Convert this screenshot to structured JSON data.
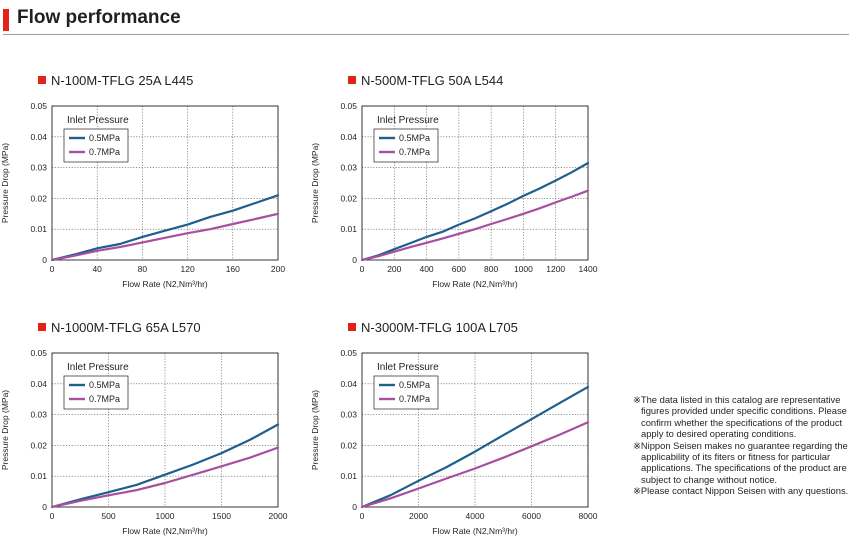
{
  "page": {
    "title": "Flow performance"
  },
  "chart_data": [
    {
      "type": "line",
      "title": "N-100M-TFLG 25A L445",
      "xlabel": "Flow Rate (N2,Nm³/hr)",
      "ylabel": "Pressure Drop (MPa)",
      "xlim": [
        0,
        200
      ],
      "ylim": [
        0,
        0.05
      ],
      "x_ticks": [
        0,
        40,
        80,
        120,
        160,
        200
      ],
      "y_ticks": [
        0,
        0.01,
        0.02,
        0.03,
        0.04,
        0.05
      ],
      "grid": true,
      "legend_title": "Inlet Pressure",
      "legend_position": "top-left",
      "series": [
        {
          "name": "0.5MPa",
          "color": "#1e5f8e",
          "x": [
            0,
            20,
            40,
            60,
            80,
            100,
            120,
            140,
            160,
            180,
            200
          ],
          "y": [
            0,
            0.0018,
            0.0038,
            0.0052,
            0.0075,
            0.0095,
            0.0115,
            0.014,
            0.016,
            0.0185,
            0.021
          ]
        },
        {
          "name": "0.7MPa",
          "color": "#a84f9e",
          "x": [
            0,
            20,
            40,
            60,
            80,
            100,
            120,
            140,
            160,
            180,
            200
          ],
          "y": [
            0,
            0.0014,
            0.003,
            0.0042,
            0.0057,
            0.0072,
            0.0087,
            0.01,
            0.0117,
            0.0133,
            0.015
          ]
        }
      ]
    },
    {
      "type": "line",
      "title": "N-500M-TFLG 50A L544",
      "xlabel": "Flow Rate (N2,Nm³/hr)",
      "ylabel": "Pressure Drop (MPa)",
      "xlim": [
        0,
        1400
      ],
      "ylim": [
        0,
        0.05
      ],
      "x_ticks": [
        0,
        200,
        400,
        600,
        800,
        1000,
        1200,
        1400
      ],
      "y_ticks": [
        0,
        0.01,
        0.02,
        0.03,
        0.04,
        0.05
      ],
      "grid": true,
      "legend_title": "Inlet Pressure",
      "legend_position": "top-left",
      "series": [
        {
          "name": "0.5MPa",
          "color": "#1e5f8e",
          "x": [
            0,
            100,
            200,
            300,
            400,
            500,
            600,
            700,
            800,
            900,
            1000,
            1100,
            1200,
            1300,
            1400
          ],
          "y": [
            0,
            0.0015,
            0.0035,
            0.0055,
            0.0075,
            0.0092,
            0.0115,
            0.0135,
            0.0158,
            0.0182,
            0.0208,
            0.0232,
            0.0258,
            0.0285,
            0.0315
          ]
        },
        {
          "name": "0.7MPa",
          "color": "#a84f9e",
          "x": [
            0,
            100,
            200,
            300,
            400,
            500,
            600,
            700,
            800,
            900,
            1000,
            1100,
            1200,
            1300,
            1400
          ],
          "y": [
            0,
            0.0012,
            0.0027,
            0.0042,
            0.0056,
            0.007,
            0.0085,
            0.01,
            0.0117,
            0.0133,
            0.015,
            0.0168,
            0.0187,
            0.0206,
            0.0225
          ]
        }
      ]
    },
    {
      "type": "line",
      "title": "N-1000M-TFLG 65A L570",
      "xlabel": "Flow Rate (N2,Nm³/hr)",
      "ylabel": "Pressure Drop (MPa)",
      "xlim": [
        0,
        2000
      ],
      "ylim": [
        0,
        0.05
      ],
      "x_ticks": [
        0,
        500,
        1000,
        1500,
        2000
      ],
      "y_ticks": [
        0,
        0.01,
        0.02,
        0.03,
        0.04,
        0.05
      ],
      "grid": true,
      "legend_title": "Inlet Pressure",
      "legend_position": "top-left",
      "series": [
        {
          "name": "0.5MPa",
          "color": "#1e5f8e",
          "x": [
            0,
            250,
            500,
            750,
            1000,
            1250,
            1500,
            1750,
            2000
          ],
          "y": [
            0,
            0.0025,
            0.0048,
            0.0072,
            0.0105,
            0.0138,
            0.0175,
            0.0218,
            0.0268
          ]
        },
        {
          "name": "0.7MPa",
          "color": "#a84f9e",
          "x": [
            0,
            250,
            500,
            750,
            1000,
            1250,
            1500,
            1750,
            2000
          ],
          "y": [
            0,
            0.002,
            0.0038,
            0.0055,
            0.0078,
            0.0105,
            0.0132,
            0.016,
            0.0193
          ]
        }
      ]
    },
    {
      "type": "line",
      "title": "N-3000M-TFLG 100A L705",
      "xlabel": "Flow Rate (N2,Nm³/hr)",
      "ylabel": "Pressure Drop (MPa)",
      "xlim": [
        0,
        8000
      ],
      "ylim": [
        0,
        0.05
      ],
      "x_ticks": [
        0,
        2000,
        4000,
        6000,
        8000
      ],
      "y_ticks": [
        0,
        0.01,
        0.02,
        0.03,
        0.04,
        0.05
      ],
      "grid": true,
      "legend_title": "Inlet Pressure",
      "legend_position": "top-left",
      "series": [
        {
          "name": "0.5MPa",
          "color": "#1e5f8e",
          "x": [
            0,
            1000,
            2000,
            3000,
            4000,
            5000,
            6000,
            7000,
            8000
          ],
          "y": [
            0,
            0.0038,
            0.0085,
            0.013,
            0.018,
            0.0233,
            0.0285,
            0.0338,
            0.039
          ]
        },
        {
          "name": "0.7MPa",
          "color": "#a84f9e",
          "x": [
            0,
            1000,
            2000,
            3000,
            4000,
            5000,
            6000,
            7000,
            8000
          ],
          "y": [
            0,
            0.0028,
            0.006,
            0.0093,
            0.0125,
            0.016,
            0.0197,
            0.0235,
            0.0275
          ]
        }
      ]
    }
  ],
  "notes": [
    "※The data listed in this catalog are representative figures provided under specific conditions. Please confirm whether the specifications of the product apply to desired operating conditions.",
    "※Nippon Seisen makes no guarantee regarding the applicability of its fiters or fitness for particular applications. The specifications of the product are subject to change without notice.",
    "※Please contact Nippon Seisen with any questions."
  ]
}
